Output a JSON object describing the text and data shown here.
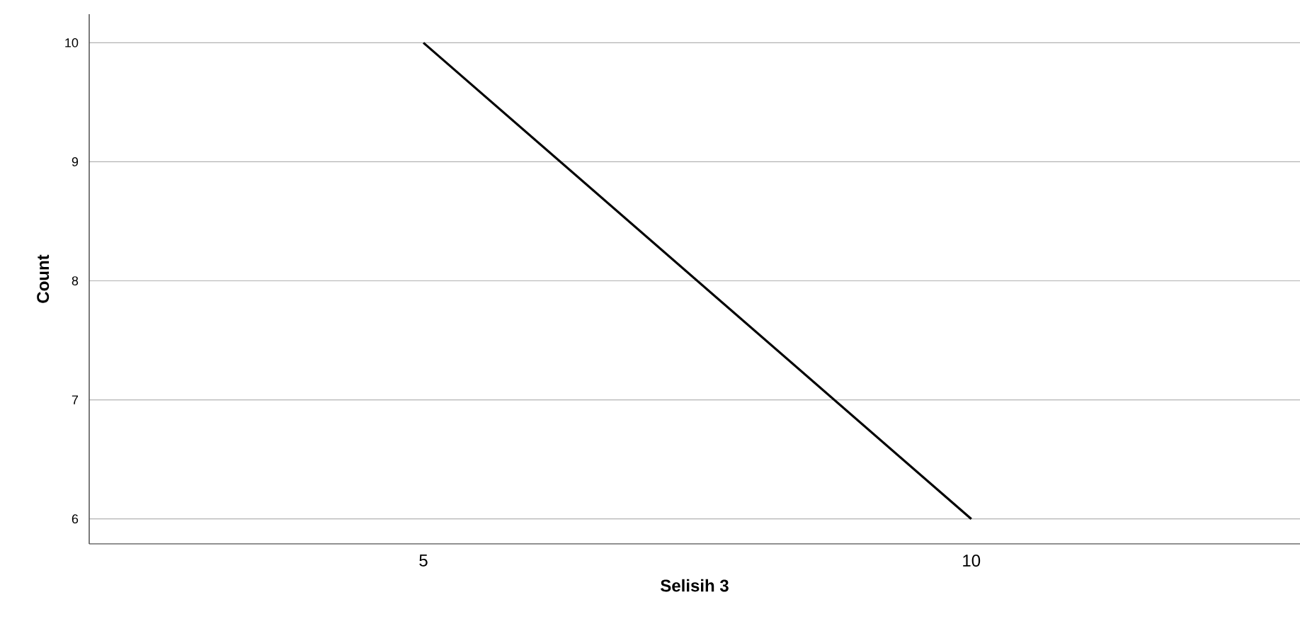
{
  "chart_data": {
    "type": "line",
    "xlabel": "Selisih 3",
    "ylabel": "Count",
    "categories": [
      "5",
      "10"
    ],
    "series": [
      {
        "color": "#000000",
        "values": [
          10,
          6
        ]
      }
    ],
    "ylim": [
      5.79,
      10.24
    ],
    "yticks": [
      6,
      7,
      8,
      9,
      10
    ],
    "grid": "y",
    "legend": false,
    "marker": "none",
    "line_style": "solid"
  }
}
